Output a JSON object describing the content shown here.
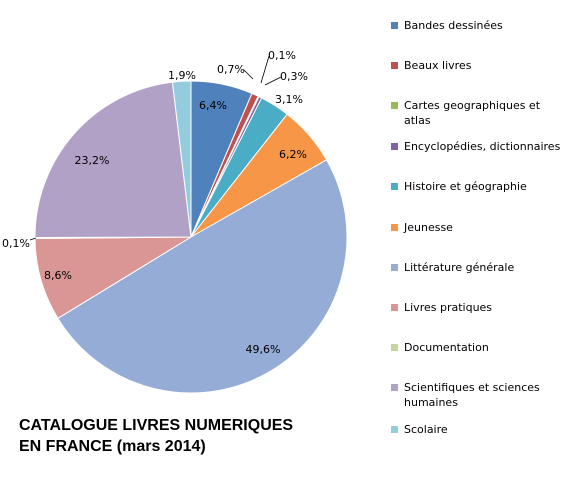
{
  "chart_data": {
    "type": "pie",
    "title_lines": [
      "CATALOGUE LIVRES NUMERIQUES",
      "EN FRANCE (mars 2014)"
    ],
    "start_angle_deg": 0,
    "direction": "clockwise",
    "legend_position": "right",
    "slices": [
      {
        "name": "Bandes dessinées",
        "value": 6.4,
        "label": "6,4%",
        "color": "#4F81BD"
      },
      {
        "name": "Beaux livres",
        "value": 0.7,
        "label": "0,7%",
        "color": "#C0504D"
      },
      {
        "name": "Cartes geographiques et atlas",
        "value": 0.1,
        "label": "0,1%",
        "color": "#9BBB59"
      },
      {
        "name": "Encyclopédies, dictionnaires",
        "value": 0.3,
        "label": "0,3%",
        "color": "#8064A2"
      },
      {
        "name": "Histoire et géographie",
        "value": 3.1,
        "label": "3,1%",
        "color": "#4BACC6"
      },
      {
        "name": "Jeunesse",
        "value": 6.2,
        "label": "6,2%",
        "color": "#F79646"
      },
      {
        "name": "Littérature générale",
        "value": 49.6,
        "label": "49,6%",
        "color": "#95ACD6"
      },
      {
        "name": "Livres pratiques",
        "value": 8.6,
        "label": "8,6%",
        "color": "#D99694"
      },
      {
        "name": "Documentation",
        "value": 0.1,
        "label": "0,1%",
        "color": "#C3D69B"
      },
      {
        "name": "Scientifiques et sciences humaines",
        "value": 23.2,
        "label": "23,2%",
        "color": "#B2A1C7"
      },
      {
        "name": "Scolaire",
        "value": 1.9,
        "label": "1,9%",
        "color": "#93CDDD"
      }
    ]
  }
}
